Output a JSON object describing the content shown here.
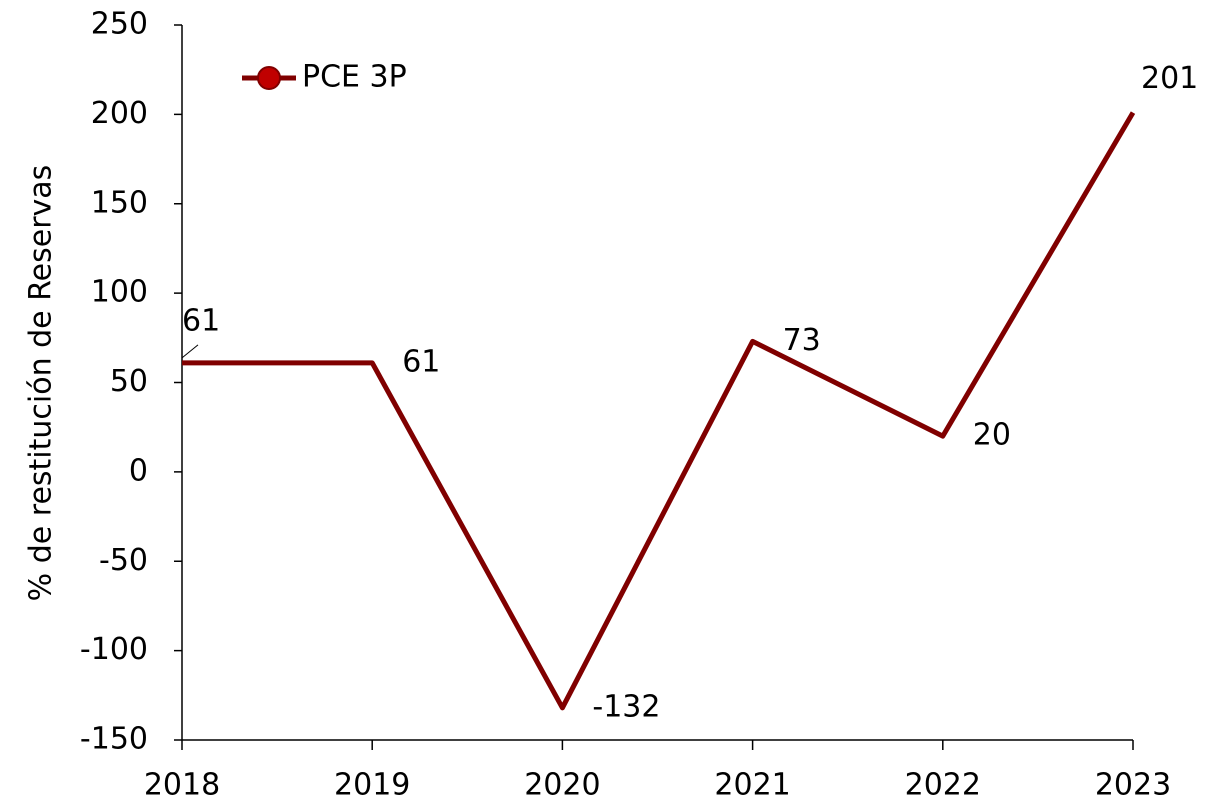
{
  "chart_data": {
    "type": "line",
    "y_label": "% de restitución de Reservas",
    "categories": [
      "2018",
      "2019",
      "2020",
      "2021",
      "2022",
      "2023"
    ],
    "series": [
      {
        "name": "PCE 3P",
        "color": "#800000",
        "values": [
          61,
          61,
          -132,
          73,
          20,
          201
        ]
      }
    ],
    "ylim": [
      -150,
      250
    ],
    "yticks": [
      -150,
      -100,
      -50,
      0,
      50,
      100,
      150,
      200,
      250
    ],
    "grid": false,
    "legend": "upper left",
    "data_labels": true
  }
}
